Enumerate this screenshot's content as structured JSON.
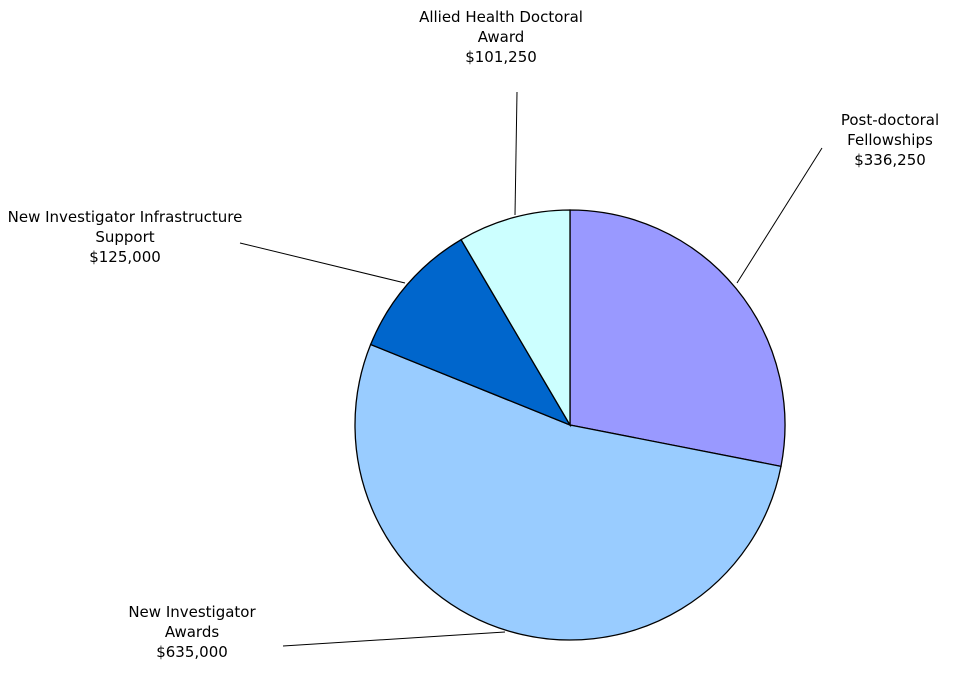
{
  "chart_data": {
    "type": "pie",
    "categories": [
      "Post-doctoral Fellowships",
      "New Investigator Awards",
      "New Investigator Infrastructure Support",
      "Allied Health Doctoral Award"
    ],
    "values": [
      336250,
      635000,
      125000,
      101250
    ],
    "value_labels": [
      "$336,250",
      "$635,000",
      "$125,000",
      "$101,250"
    ],
    "colors": [
      "#9999ff",
      "#99ccff",
      "#0066cc",
      "#ccffff"
    ]
  }
}
